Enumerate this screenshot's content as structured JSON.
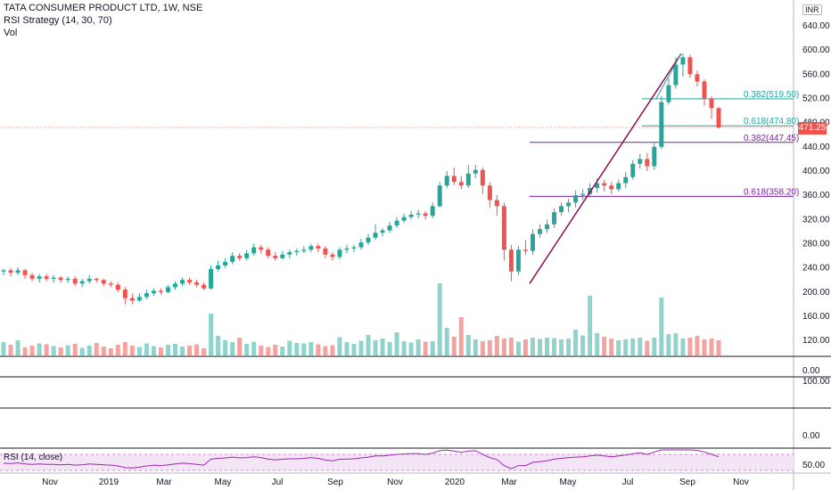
{
  "header": {
    "title": "TATA CONSUMER PRODUCT LTD, 1W, NSE",
    "indicator": "RSI Strategy (14, 30, 70)",
    "volume": "Vol",
    "currency": "INR",
    "rsi_label": "RSI (14, close)",
    "current_price": "471.25"
  },
  "colors": {
    "up": "#26a69a",
    "down": "#ef5350",
    "vol_up": "#8fd3cb",
    "vol_down": "#f4a3a1",
    "fib": "#7b1fa2",
    "fib2": "#26a69a",
    "trend": "#880e4f",
    "rsi": "#9c27b0"
  },
  "chart_data": {
    "type": "candlestick",
    "y_ticks": [
      "640.00",
      "600.00",
      "560.00",
      "520.00",
      "480.00",
      "440.00",
      "400.00",
      "360.00",
      "320.00",
      "280.00",
      "240.00",
      "200.00",
      "160.00",
      "120.00"
    ],
    "ylim": [
      100,
      660
    ],
    "x_ticks": [
      "Nov",
      "2019",
      "Mar",
      "May",
      "Jul",
      "Sep",
      "Nov",
      "2020",
      "Mar",
      "May",
      "Jul",
      "Sep",
      "Nov"
    ],
    "fib_levels": [
      {
        "label": "0.382(519.50)",
        "value": 519.5,
        "color": "fib2"
      },
      {
        "label": "0.618(474.80)",
        "value": 474.8,
        "color": "fib2"
      },
      {
        "label": "0.382(447.45)",
        "value": 447.45,
        "color": "fib"
      },
      {
        "label": "0.618(358.20)",
        "value": 358.2,
        "color": "fib"
      }
    ],
    "current_price": 471.25,
    "lower_pane_ticks": [
      "0.00",
      "100.00",
      "0.00"
    ],
    "rsi_ticks": [
      "50.00"
    ],
    "candles": [
      [
        234,
        236,
        239,
        228
      ],
      [
        236,
        232,
        240,
        226
      ],
      [
        232,
        236,
        241,
        228
      ],
      [
        236,
        228,
        238,
        222
      ],
      [
        228,
        222,
        232,
        218
      ],
      [
        222,
        226,
        230,
        216
      ],
      [
        226,
        222,
        230,
        218
      ],
      [
        222,
        224,
        228,
        216
      ],
      [
        224,
        220,
        226,
        216
      ],
      [
        220,
        222,
        226,
        215
      ],
      [
        222,
        214,
        226,
        210
      ],
      [
        214,
        218,
        222,
        208
      ],
      [
        218,
        222,
        228,
        214
      ],
      [
        222,
        220,
        224,
        216
      ],
      [
        220,
        214,
        222,
        210
      ],
      [
        214,
        212,
        218,
        208
      ],
      [
        212,
        204,
        216,
        200
      ],
      [
        204,
        190,
        208,
        180
      ],
      [
        190,
        186,
        198,
        180
      ],
      [
        186,
        192,
        198,
        184
      ],
      [
        192,
        198,
        204,
        188
      ],
      [
        198,
        202,
        206,
        194
      ],
      [
        202,
        200,
        206,
        196
      ],
      [
        200,
        208,
        212,
        198
      ],
      [
        208,
        214,
        218,
        204
      ],
      [
        214,
        220,
        224,
        210
      ],
      [
        220,
        216,
        224,
        212
      ],
      [
        216,
        212,
        220,
        208
      ],
      [
        212,
        206,
        216,
        204
      ],
      [
        206,
        238,
        244,
        204
      ],
      [
        238,
        244,
        252,
        234
      ],
      [
        244,
        250,
        256,
        240
      ],
      [
        250,
        260,
        266,
        246
      ],
      [
        260,
        256,
        264,
        252
      ],
      [
        256,
        264,
        270,
        252
      ],
      [
        264,
        274,
        280,
        260
      ],
      [
        274,
        270,
        278,
        264
      ],
      [
        270,
        260,
        274,
        256
      ],
      [
        260,
        256,
        266,
        252
      ],
      [
        256,
        262,
        268,
        254
      ],
      [
        262,
        266,
        270,
        256
      ],
      [
        266,
        268,
        272,
        260
      ],
      [
        268,
        270,
        276,
        264
      ],
      [
        270,
        276,
        280,
        266
      ],
      [
        276,
        272,
        280,
        266
      ],
      [
        272,
        262,
        276,
        256
      ],
      [
        262,
        258,
        266,
        252
      ],
      [
        258,
        270,
        274,
        254
      ],
      [
        270,
        272,
        278,
        264
      ],
      [
        272,
        274,
        278,
        266
      ],
      [
        274,
        282,
        288,
        270
      ],
      [
        282,
        290,
        296,
        278
      ],
      [
        290,
        298,
        312,
        286
      ],
      [
        298,
        302,
        306,
        292
      ],
      [
        302,
        310,
        316,
        298
      ],
      [
        310,
        318,
        324,
        306
      ],
      [
        318,
        324,
        330,
        314
      ],
      [
        324,
        328,
        334,
        320
      ],
      [
        328,
        330,
        336,
        322
      ],
      [
        330,
        326,
        334,
        320
      ],
      [
        326,
        342,
        348,
        322
      ],
      [
        342,
        376,
        382,
        340
      ],
      [
        376,
        392,
        400,
        372
      ],
      [
        392,
        382,
        406,
        376
      ],
      [
        382,
        376,
        392,
        370
      ],
      [
        376,
        396,
        410,
        372
      ],
      [
        396,
        402,
        410,
        388
      ],
      [
        402,
        376,
        406,
        362
      ],
      [
        376,
        352,
        382,
        340
      ],
      [
        352,
        342,
        360,
        326
      ],
      [
        342,
        270,
        348,
        252
      ],
      [
        270,
        234,
        278,
        218
      ],
      [
        234,
        270,
        276,
        228
      ],
      [
        270,
        268,
        286,
        262
      ],
      [
        268,
        296,
        304,
        262
      ],
      [
        296,
        304,
        312,
        290
      ],
      [
        304,
        312,
        320,
        298
      ],
      [
        312,
        332,
        338,
        306
      ],
      [
        332,
        342,
        348,
        326
      ],
      [
        342,
        348,
        354,
        332
      ],
      [
        348,
        360,
        368,
        340
      ],
      [
        360,
        362,
        370,
        352
      ],
      [
        362,
        372,
        380,
        356
      ],
      [
        372,
        380,
        388,
        364
      ],
      [
        380,
        376,
        386,
        366
      ],
      [
        376,
        370,
        382,
        362
      ],
      [
        370,
        380,
        386,
        366
      ],
      [
        380,
        390,
        398,
        372
      ],
      [
        390,
        412,
        418,
        386
      ],
      [
        412,
        420,
        428,
        404
      ],
      [
        420,
        408,
        430,
        400
      ],
      [
        408,
        440,
        448,
        402
      ],
      [
        440,
        514,
        524,
        436
      ],
      [
        514,
        542,
        554,
        510
      ],
      [
        542,
        576,
        588,
        536
      ],
      [
        576,
        588,
        594,
        556
      ],
      [
        588,
        560,
        592,
        554
      ],
      [
        560,
        548,
        566,
        540
      ],
      [
        548,
        520,
        552,
        508
      ],
      [
        520,
        504,
        524,
        486
      ],
      [
        504,
        472,
        506,
        470
      ]
    ],
    "volumes": [
      0.3,
      0.24,
      0.34,
      0.18,
      0.22,
      0.27,
      0.25,
      0.21,
      0.18,
      0.23,
      0.26,
      0.17,
      0.22,
      0.28,
      0.2,
      0.16,
      0.24,
      0.3,
      0.22,
      0.19,
      0.27,
      0.21,
      0.18,
      0.24,
      0.26,
      0.2,
      0.22,
      0.25,
      0.16,
      0.94,
      0.44,
      0.34,
      0.3,
      0.4,
      0.26,
      0.31,
      0.22,
      0.19,
      0.24,
      0.2,
      0.33,
      0.28,
      0.27,
      0.3,
      0.25,
      0.21,
      0.23,
      0.41,
      0.3,
      0.26,
      0.33,
      0.46,
      0.34,
      0.38,
      0.3,
      0.52,
      0.32,
      0.29,
      0.36,
      0.31,
      0.32,
      1.62,
      0.62,
      0.42,
      0.86,
      0.46,
      0.36,
      0.32,
      0.34,
      0.44,
      0.38,
      0.4,
      0.31,
      0.36,
      0.4,
      0.37,
      0.4,
      0.39,
      0.36,
      0.38,
      0.58,
      0.45,
      1.34,
      0.5,
      0.42,
      0.38,
      0.34,
      0.36,
      0.38,
      0.4,
      0.33,
      0.4,
      1.3,
      0.48,
      0.5,
      0.38,
      0.4,
      0.44,
      0.36,
      0.38,
      0.34
    ],
    "rsi": [
      48,
      47,
      49,
      46,
      45,
      46,
      45,
      45,
      44,
      45,
      43,
      44,
      46,
      45,
      44,
      43,
      41,
      37,
      36,
      38,
      41,
      43,
      42,
      44,
      46,
      48,
      47,
      45,
      43,
      58,
      60,
      61,
      63,
      61,
      62,
      64,
      62,
      58,
      56,
      58,
      59,
      59,
      60,
      62,
      60,
      56,
      54,
      58,
      58,
      59,
      61,
      63,
      66,
      66,
      68,
      70,
      71,
      72,
      72,
      70,
      73,
      79,
      81,
      78,
      75,
      78,
      79,
      70,
      62,
      57,
      42,
      34,
      42,
      42,
      50,
      52,
      54,
      58,
      60,
      62,
      63,
      64,
      66,
      68,
      66,
      64,
      66,
      68,
      72,
      74,
      70,
      76,
      84,
      86,
      88,
      88,
      84,
      80,
      76,
      70,
      64
    ]
  }
}
